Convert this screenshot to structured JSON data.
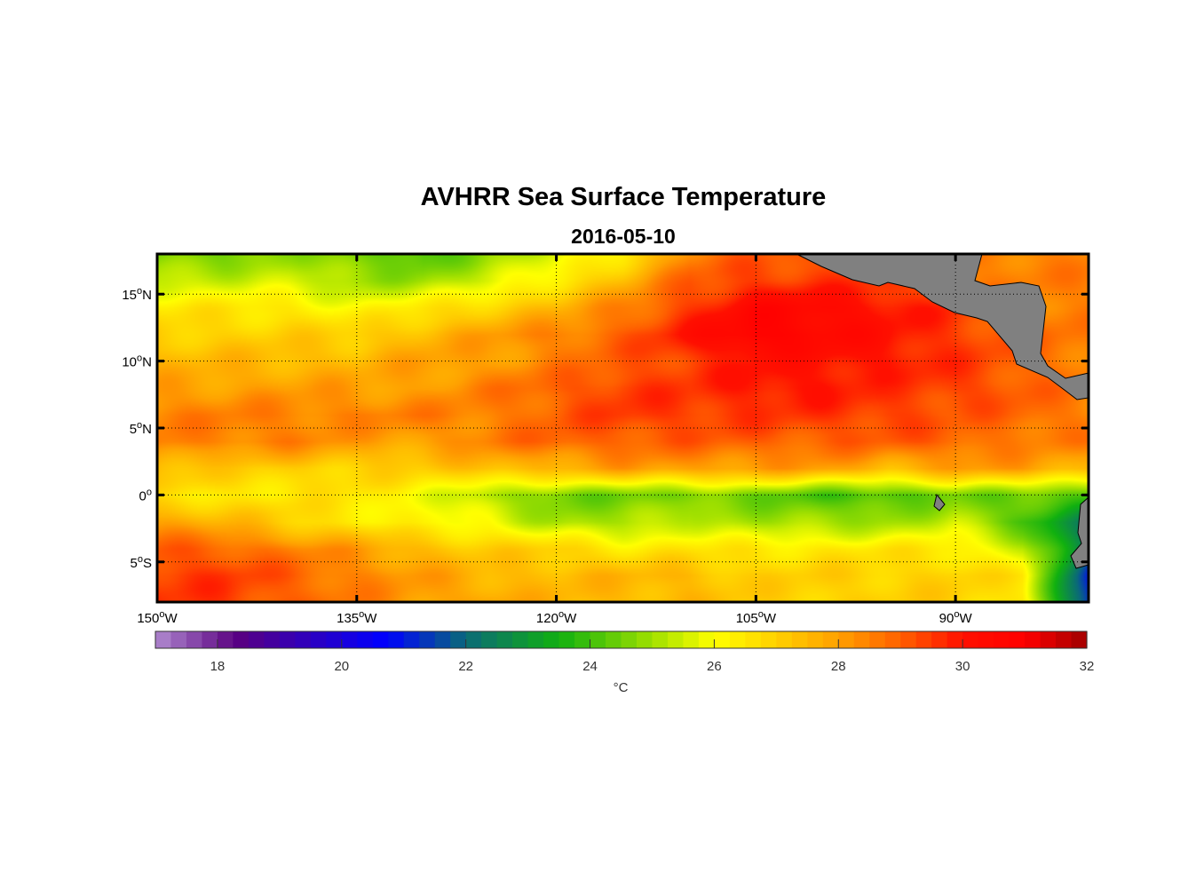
{
  "chart_data": {
    "type": "heatmap",
    "title": "AVHRR Sea Surface Temperature",
    "subtitle": "2016-05-10",
    "x_ticks": [
      {
        "value": -150,
        "label": "150",
        "suffix": "W"
      },
      {
        "value": -135,
        "label": "135",
        "suffix": "W"
      },
      {
        "value": -120,
        "label": "120",
        "suffix": "W"
      },
      {
        "value": -105,
        "label": "105",
        "suffix": "W"
      },
      {
        "value": -90,
        "label": "90",
        "suffix": "W"
      }
    ],
    "y_ticks": [
      {
        "value": 15,
        "label": "15",
        "suffix": "N"
      },
      {
        "value": 10,
        "label": "10",
        "suffix": "N"
      },
      {
        "value": 5,
        "label": "5",
        "suffix": "N"
      },
      {
        "value": 0,
        "label": "0",
        "suffix": ""
      },
      {
        "value": -5,
        "label": "5",
        "suffix": "S"
      }
    ],
    "xlim": [
      -150,
      -80
    ],
    "ylim": [
      -8,
      18
    ],
    "grid": true,
    "lats": [
      18,
      16,
      14,
      12,
      10,
      8,
      6,
      4,
      2,
      0,
      -2,
      -4,
      -6,
      -8
    ],
    "lons": [
      -150,
      -145,
      -140,
      -135,
      -130,
      -125,
      -120,
      -115,
      -110,
      -105,
      -100,
      -95,
      -90,
      -85,
      -80
    ],
    "values": [
      [
        24.5,
        24.5,
        25,
        24.5,
        24,
        25,
        25.5,
        26.5,
        28.5,
        29,
        29,
        29,
        28.5,
        28.5,
        28.5
      ],
      [
        25.5,
        25.5,
        25.5,
        25,
        25,
        25.5,
        26.5,
        27.5,
        29,
        29.5,
        29.5,
        29.5,
        28.5,
        28.5,
        28.5
      ],
      [
        26.5,
        26.5,
        26.5,
        26,
        26.5,
        27,
        27.5,
        28.5,
        29.5,
        30.5,
        30.5,
        30,
        29.5,
        28.5,
        28.5
      ],
      [
        27,
        27,
        27,
        27,
        27.5,
        28,
        28.5,
        29,
        30,
        31,
        30.5,
        30,
        29.5,
        29,
        28.5
      ],
      [
        27.5,
        27.5,
        27.5,
        27.5,
        28,
        28,
        28.5,
        29,
        29.5,
        30,
        30,
        30,
        29.5,
        29,
        28.5
      ],
      [
        28,
        28,
        28,
        28,
        28,
        28.5,
        29,
        29.5,
        29.5,
        30,
        30,
        29.5,
        29.5,
        29,
        28.5
      ],
      [
        28.5,
        28.5,
        28.5,
        28.5,
        28.5,
        28.5,
        29,
        29.5,
        29.5,
        29.5,
        29.5,
        29.5,
        29,
        29,
        28.5
      ],
      [
        28.5,
        28.5,
        28.5,
        28,
        28,
        28.5,
        29,
        29,
        29,
        29,
        29,
        29,
        29,
        28.5,
        28.5
      ],
      [
        27.5,
        27,
        27,
        27,
        27,
        27.5,
        27.5,
        28,
        28,
        28,
        28,
        27.5,
        28,
        28,
        27.5
      ],
      [
        26.5,
        26.5,
        26.5,
        26.5,
        26,
        25,
        24.5,
        24.5,
        24.5,
        24.5,
        24,
        24,
        24.5,
        24.5,
        24
      ],
      [
        28,
        27.5,
        27,
        26.5,
        26,
        26,
        25,
        25,
        25.5,
        25,
        25,
        25,
        25.5,
        24,
        22.5
      ],
      [
        29,
        29,
        28.5,
        28,
        27.5,
        27,
        27,
        26.5,
        26.5,
        26.5,
        26.5,
        26.5,
        26.5,
        25.5,
        22
      ],
      [
        29.5,
        29.5,
        29,
        28.5,
        28,
        27.5,
        27.5,
        27.5,
        27.5,
        27,
        27,
        27,
        27,
        26.5,
        21
      ],
      [
        29.5,
        29.5,
        29,
        28.5,
        28,
        28,
        27.5,
        27.5,
        27.5,
        27,
        27,
        27,
        27,
        26.5,
        21
      ]
    ],
    "colorbar": {
      "range": [
        17,
        32
      ],
      "ticks": [
        18,
        20,
        22,
        24,
        26,
        28,
        30,
        32
      ],
      "label": "°C",
      "stops": [
        [
          17,
          "#b08ad0"
        ],
        [
          18.3,
          "#5a0080"
        ],
        [
          20.7,
          "#0000ff"
        ],
        [
          22,
          "#0a6a78"
        ],
        [
          23.5,
          "#10b010"
        ],
        [
          25,
          "#a0e000"
        ],
        [
          26,
          "#ffff00"
        ],
        [
          27,
          "#ffd000"
        ],
        [
          28,
          "#ffa000"
        ],
        [
          29,
          "#ff6000"
        ],
        [
          30,
          "#ff1000"
        ],
        [
          31,
          "#ff0000"
        ],
        [
          32,
          "#a00000"
        ]
      ]
    },
    "land_color": "#808080"
  }
}
